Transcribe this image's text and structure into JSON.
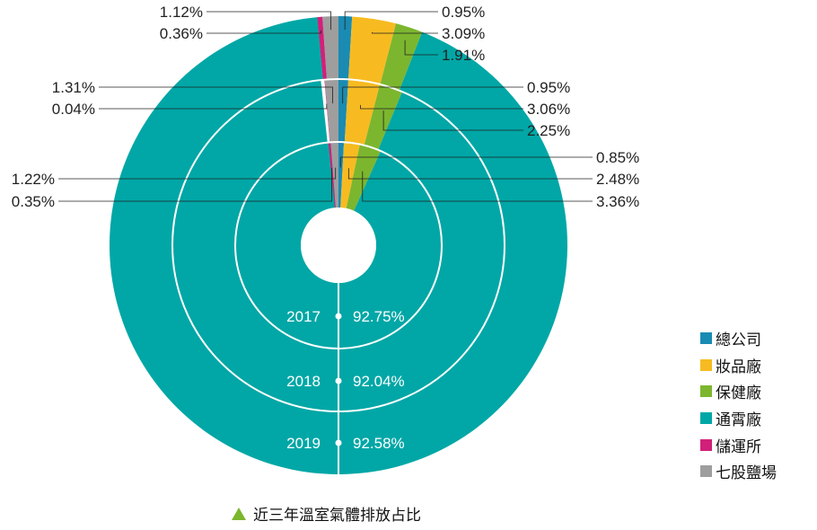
{
  "chart_data": {
    "type": "pie",
    "style": "multi-ring donut",
    "caption": "近三年溫室氣體排放占比",
    "series_order": [
      "總公司",
      "妝品廠",
      "保健廠",
      "通霄廠",
      "儲運所",
      "七股鹽場"
    ],
    "colors": {
      "總公司": "#1a8bb3",
      "妝品廠": "#f7bb21",
      "保健廠": "#7cb62e",
      "通霄廠": "#00a7a6",
      "儲運所": "#d1207a",
      "七股鹽場": "#9e9e9e"
    },
    "rings": [
      {
        "year": "2017",
        "values": {
          "總公司": 0.85,
          "妝品廠": 2.48,
          "保健廠": 3.36,
          "通霄廠": 92.75,
          "儲運所": 0.35,
          "七股鹽場": 1.22
        },
        "labels": {
          "總公司": "0.85%",
          "妝品廠": "2.48%",
          "保健廠": "3.36%",
          "通霄廠": "92.75%",
          "儲運所": "0.35%",
          "七股鹽場": "1.22%"
        }
      },
      {
        "year": "2018",
        "values": {
          "總公司": 0.95,
          "妝品廠": 3.06,
          "保健廠": 2.25,
          "通霄廠": 92.04,
          "儲運所": 0.04,
          "七股鹽場": 1.31
        },
        "labels": {
          "總公司": "0.95%",
          "妝品廠": "3.06%",
          "保健廠": "2.25%",
          "通霄廠": "92.04%",
          "儲運所": "0.04%",
          "七股鹽場": "1.31%"
        }
      },
      {
        "year": "2019",
        "values": {
          "總公司": 0.95,
          "妝品廠": 3.09,
          "保健廠": 1.91,
          "通霄廠": 92.58,
          "儲運所": 0.36,
          "七股鹽場": 1.12
        },
        "labels": {
          "總公司": "0.95%",
          "妝品廠": "3.09%",
          "保健廠": "1.91%",
          "通霄廠": "92.58%",
          "儲運所": "0.36%",
          "七股鹽場": "1.12%"
        }
      }
    ],
    "legend": [
      "總公司",
      "妝品廠",
      "保健廠",
      "通霄廠",
      "儲運所",
      "七股鹽場"
    ],
    "legend_position": "right"
  }
}
